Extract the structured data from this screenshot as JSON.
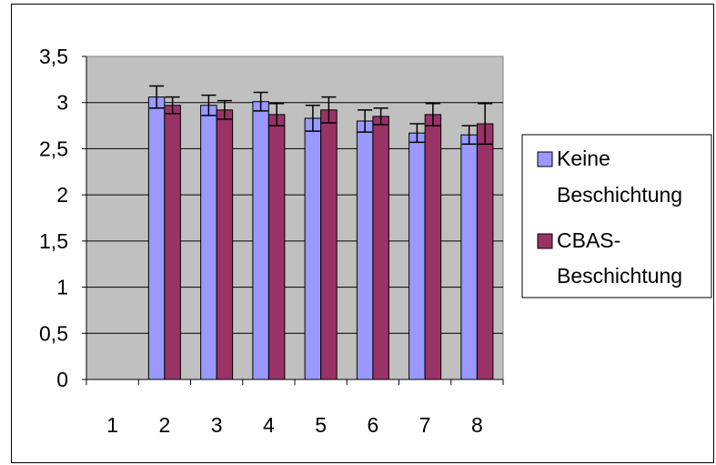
{
  "chart_data": {
    "type": "bar",
    "categories": [
      "1",
      "2",
      "3",
      "4",
      "5",
      "6",
      "7",
      "8"
    ],
    "ylim": [
      0,
      3.5
    ],
    "yticks": [
      "0",
      "0,5",
      "1",
      "1,5",
      "2",
      "2,5",
      "3",
      "3,5"
    ],
    "ytick_values": [
      0,
      0.5,
      1,
      1.5,
      2,
      2.5,
      3,
      3.5
    ],
    "grid": true,
    "legend_position": "right",
    "plot_background": "#c0c0c0",
    "series": [
      {
        "legend_lines": [
          "Keine",
          "Beschichtung"
        ],
        "color": "#9999ff",
        "values": [
          0,
          3.06,
          2.97,
          3.01,
          2.83,
          2.8,
          2.67,
          2.65
        ],
        "errors": [
          0,
          0.12,
          0.11,
          0.1,
          0.14,
          0.12,
          0.1,
          0.1
        ]
      },
      {
        "legend_lines": [
          "CBAS-",
          "Beschichtung"
        ],
        "color": "#993366",
        "values": [
          0,
          2.97,
          2.92,
          2.87,
          2.92,
          2.85,
          2.87,
          2.77
        ],
        "errors": [
          0,
          0.09,
          0.1,
          0.12,
          0.14,
          0.09,
          0.12,
          0.22
        ]
      }
    ]
  }
}
